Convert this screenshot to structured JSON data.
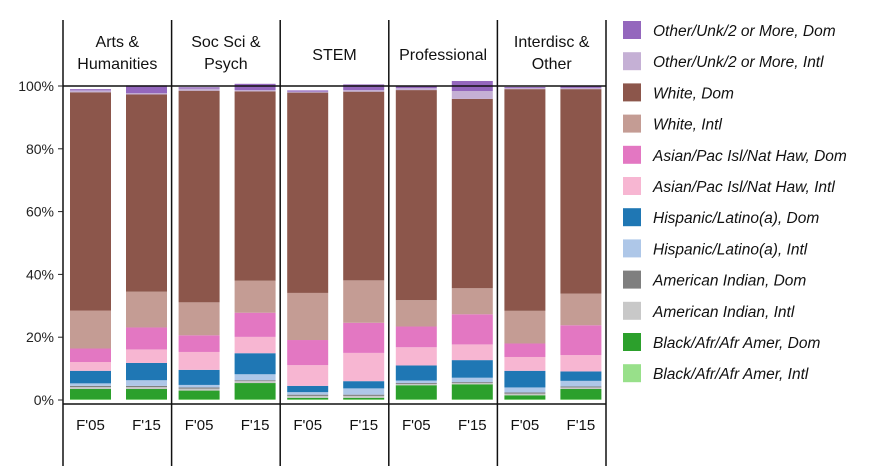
{
  "chart_data": {
    "type": "bar",
    "stacked": true,
    "ylim": [
      0,
      100
    ],
    "yticks": [
      "0%",
      "20%",
      "40%",
      "60%",
      "80%",
      "100%"
    ],
    "ytick_values": [
      0,
      20,
      40,
      60,
      80,
      100
    ],
    "legend_position": "right",
    "groups": [
      {
        "label_lines": [
          "Arts &",
          "Humanities"
        ],
        "bars": [
          "F'05",
          "F'15"
        ]
      },
      {
        "label_lines": [
          "Soc Sci &",
          "Psych"
        ],
        "bars": [
          "F'05",
          "F'15"
        ]
      },
      {
        "label_lines": [
          "STEM"
        ],
        "bars": [
          "F'05",
          "F'15"
        ]
      },
      {
        "label_lines": [
          "Professional"
        ],
        "bars": [
          "F'05",
          "F'15"
        ]
      },
      {
        "label_lines": [
          "Interdisc &",
          "Other"
        ],
        "bars": [
          "F'05",
          "F'15"
        ]
      }
    ],
    "categories": [
      "F'05",
      "F'15",
      "F'05",
      "F'15",
      "F'05",
      "F'15",
      "F'05",
      "F'15",
      "F'05",
      "F'15"
    ],
    "series": [
      {
        "name": "Black/Afr/Afr Amer, Intl",
        "color": "#98e08a",
        "values": [
          0.2,
          0.2,
          0.2,
          0.2,
          0.2,
          0.2,
          0.2,
          0.2,
          0.2,
          0.2
        ]
      },
      {
        "name": "Black/Afr/Afr Amer, Dom",
        "color": "#2ca02c",
        "values": [
          3.3,
          3.3,
          2.8,
          5.2,
          0.5,
          0.5,
          4.5,
          4.8,
          1.3,
          3.3
        ]
      },
      {
        "name": "American Indian, Intl",
        "color": "#c8c8c8",
        "values": [
          0.6,
          0.6,
          0.6,
          0.6,
          0.6,
          0.6,
          0.4,
          0.4,
          0.5,
          0.5
        ]
      },
      {
        "name": "American Indian, Dom",
        "color": "#7f7f7f",
        "values": [
          0.4,
          0.4,
          0.4,
          0.3,
          0.4,
          0.4,
          0.3,
          0.3,
          0.4,
          0.3
        ]
      },
      {
        "name": "Hispanic/Latino(a), Intl",
        "color": "#aec7e8",
        "values": [
          0.8,
          1.8,
          0.8,
          1.9,
          0.8,
          2.0,
          0.8,
          1.4,
          1.6,
          1.8
        ]
      },
      {
        "name": "Hispanic/Latino(a), Dom",
        "color": "#1f77b4",
        "values": [
          4.0,
          5.5,
          4.8,
          6.7,
          2.0,
          2.3,
          4.8,
          5.6,
          5.3,
          3.0
        ]
      },
      {
        "name": "Asian/Pac Isl/Nat Haw, Intl",
        "color": "#f7b6d2",
        "values": [
          2.8,
          4.3,
          5.7,
          5.2,
          6.6,
          9.0,
          5.8,
          5.0,
          4.4,
          5.2
        ]
      },
      {
        "name": "Asian/Pac Isl/Nat Haw, Dom",
        "color": "#e377c2",
        "values": [
          4.3,
          7.0,
          5.3,
          7.7,
          8.0,
          9.6,
          6.6,
          9.6,
          4.3,
          9.5
        ]
      },
      {
        "name": "White, Intl",
        "color": "#c49c94",
        "values": [
          12.1,
          11.4,
          10.5,
          10.2,
          15.0,
          13.5,
          8.4,
          8.3,
          10.4,
          10.1
        ]
      },
      {
        "name": "White, Dom",
        "color": "#8c564b",
        "values": [
          69.5,
          62.8,
          67.4,
          60.3,
          63.8,
          60.1,
          66.9,
          60.3,
          70.6,
          65.1
        ]
      },
      {
        "name": "Other/Unk/2 or More, Intl",
        "color": "#c5b0d5",
        "values": [
          0.6,
          0.4,
          0.7,
          0.4,
          0.3,
          0.5,
          0.6,
          2.5,
          0.4,
          0.4
        ]
      },
      {
        "name": "Other/Unk/2 or More, Dom",
        "color": "#9467bd",
        "values": [
          0.4,
          2.5,
          0.4,
          2.0,
          0.4,
          1.8,
          0.6,
          3.2,
          0.3,
          0.6
        ]
      }
    ]
  }
}
